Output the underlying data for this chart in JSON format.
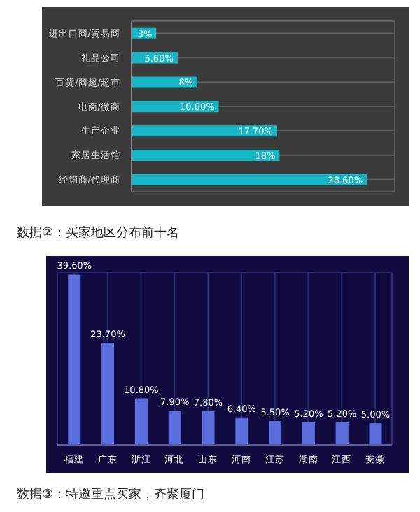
{
  "chart_data": [
    {
      "type": "bar",
      "orientation": "horizontal",
      "categories": [
        "进出口商/贸易商",
        "礼品公司",
        "百货/商超/超市",
        "电商/微商",
        "生产企业",
        "家居生活馆",
        "经销商/代理商"
      ],
      "values": [
        3,
        5.6,
        8,
        10.6,
        17.7,
        18,
        28.6
      ],
      "value_labels": [
        "3%",
        "5.60%",
        "8%",
        "10.60%",
        "17.70%",
        "18%",
        "28.60%"
      ],
      "color": "#17b6c6",
      "grid": true,
      "tick_labels": "y"
    },
    {
      "type": "bar",
      "title": "数据②：买家地区分布前十名",
      "categories": [
        "福建",
        "广东",
        "浙江",
        "河北",
        "山东",
        "河南",
        "江苏",
        "湖南",
        "江西",
        "安徽"
      ],
      "values": [
        39.6,
        23.7,
        10.8,
        7.9,
        7.8,
        6.4,
        5.5,
        5.2,
        5.2,
        5.0
      ],
      "value_labels": [
        "39.60%",
        "23.70%",
        "10.80%",
        "7.90%",
        "7.80%",
        "6.40%",
        "5.50%",
        "5.20%",
        "5.20%",
        "5.00%"
      ],
      "color": "#5b6ee0",
      "grid": true,
      "tick_labels": "x",
      "annotations": [
        "数据③：特邀重点买家，齐聚厦门"
      ]
    }
  ]
}
